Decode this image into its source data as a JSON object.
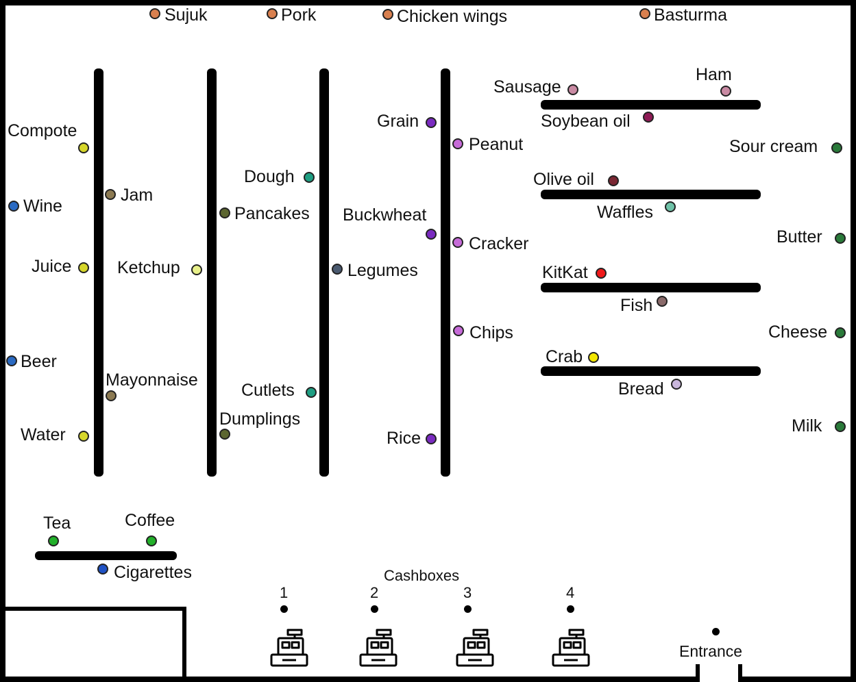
{
  "colors": {
    "meat": "#d9804f",
    "sausage_ham": "#c98aa3",
    "soybean_oil": "#8e1a55",
    "olive_oil": "#7a2733",
    "waffles": "#6fc2a8",
    "kitkat": "#f0191a",
    "fish": "#8a6a6a",
    "crab": "#f2e600",
    "bread": "#c9b6dc",
    "dairy": "#2a7a3a",
    "grain": "#7a2bc0",
    "snack": "#c66bd8",
    "dough": "#1e9e82",
    "legumes": "#4a5a70",
    "pancakes": "#5c6630",
    "ketchup": "#e8f08a",
    "drink": "#d6d62a",
    "alcohol": "#2a6ac2",
    "jam": "#8c7a52",
    "tea_coffee": "#22b02a",
    "cigarettes": "#1f52c4"
  },
  "products": {
    "sujuk": "Sujuk",
    "pork": "Pork",
    "chicken_wings": "Chicken wings",
    "basturma": "Basturma",
    "sausage": "Sausage",
    "ham": "Ham",
    "soybean_oil": "Soybean oil",
    "sour_cream": "Sour cream",
    "olive_oil": "Olive oil",
    "waffles": "Waffles",
    "butter": "Butter",
    "kitkat": "KitKat",
    "fish": "Fish",
    "cheese": "Cheese",
    "crab": "Crab",
    "bread": "Bread",
    "milk": "Milk",
    "grain": "Grain",
    "peanut": "Peanut",
    "buckwheat": "Buckwheat",
    "cracker": "Cracker",
    "chips": "Chips",
    "rice": "Rice",
    "dough": "Dough",
    "legumes": "Legumes",
    "cutlets": "Cutlets",
    "pancakes": "Pancakes",
    "ketchup": "Ketchup",
    "dumplings": "Dumplings",
    "compote": "Compote",
    "jam": "Jam",
    "wine": "Wine",
    "juice": "Juice",
    "beer": "Beer",
    "mayonnaise": "Mayonnaise",
    "water": "Water",
    "tea": "Tea",
    "coffee": "Coffee",
    "cigarettes": "Cigarettes"
  },
  "cashboxes": {
    "title": "Cashboxes",
    "numbers": [
      "1",
      "2",
      "3",
      "4"
    ]
  },
  "entrance": "Entrance",
  "icons": {
    "cash_register": "cash-register-icon"
  }
}
